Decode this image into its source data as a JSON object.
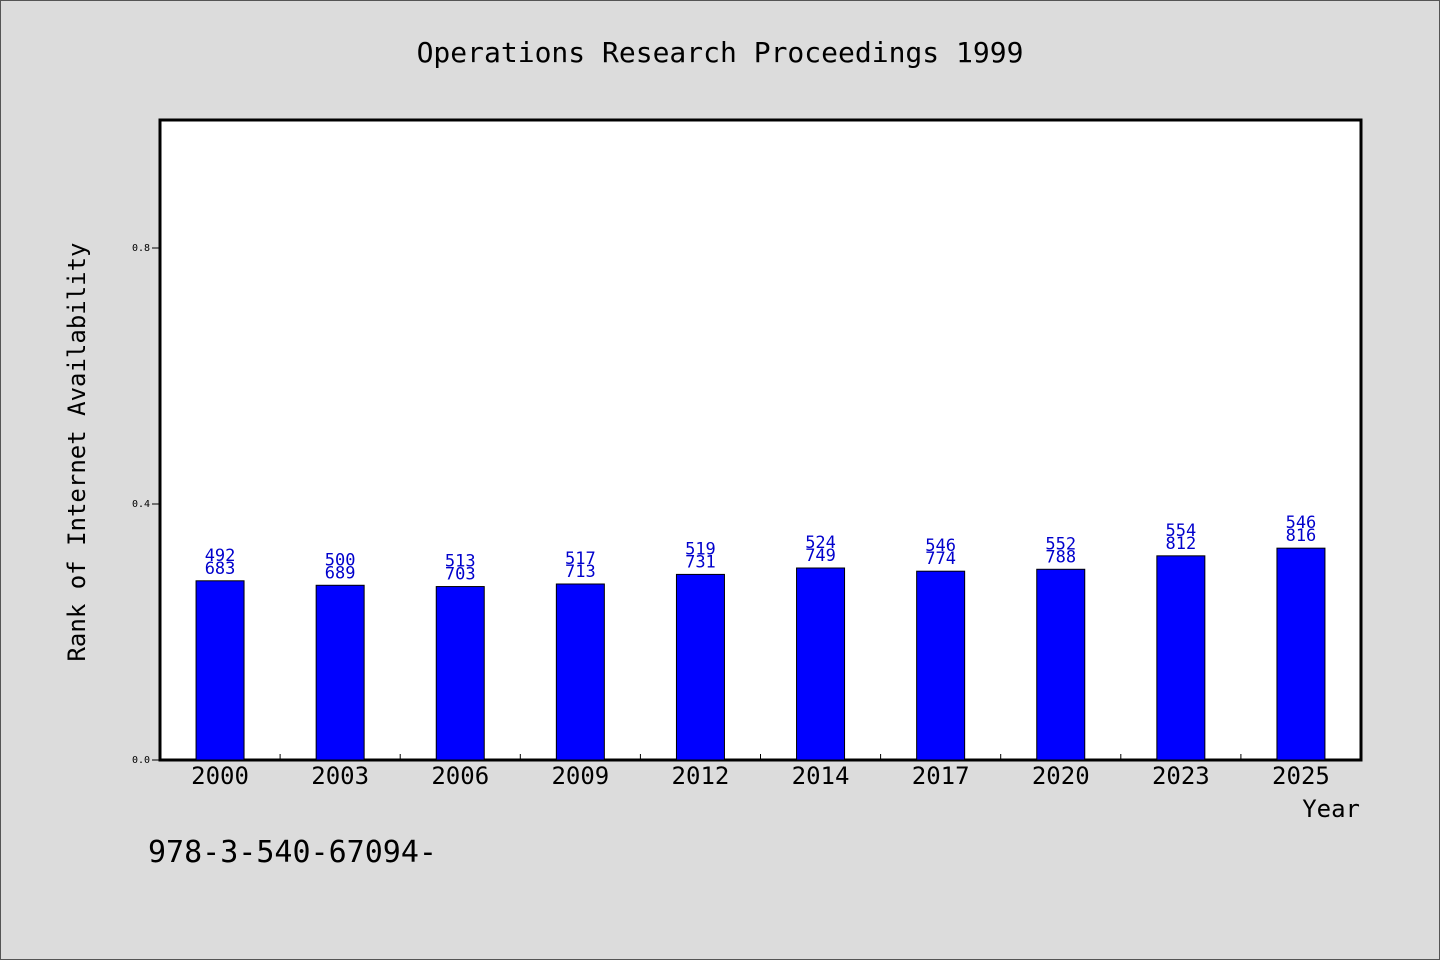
{
  "chart_data": {
    "type": "bar",
    "title": "Operations Research Proceedings 1999",
    "xlabel": "Year",
    "ylabel": "Rank of Internet Availability",
    "ylim": [
      0,
      1.0
    ],
    "yticks": [
      0.0,
      0.4,
      0.8
    ],
    "ytick_labels": [
      "0.0",
      "0.4",
      "0.8"
    ],
    "categories": [
      "2000",
      "2003",
      "2006",
      "2009",
      "2012",
      "2014",
      "2017",
      "2020",
      "2023",
      "2025"
    ],
    "values": [
      0.28,
      0.273,
      0.271,
      0.275,
      0.29,
      0.3,
      0.295,
      0.298,
      0.319,
      0.331
    ],
    "labels_top": [
      "492",
      "500",
      "513",
      "517",
      "519",
      "524",
      "546",
      "552",
      "554",
      "546"
    ],
    "labels_bottom": [
      "683",
      "689",
      "703",
      "713",
      "731",
      "749",
      "774",
      "788",
      "812",
      "816"
    ],
    "grid": false,
    "colors": {
      "bar": "#0000ff",
      "label": "#0000cc"
    }
  },
  "footer_text": "978-3-540-67094-"
}
